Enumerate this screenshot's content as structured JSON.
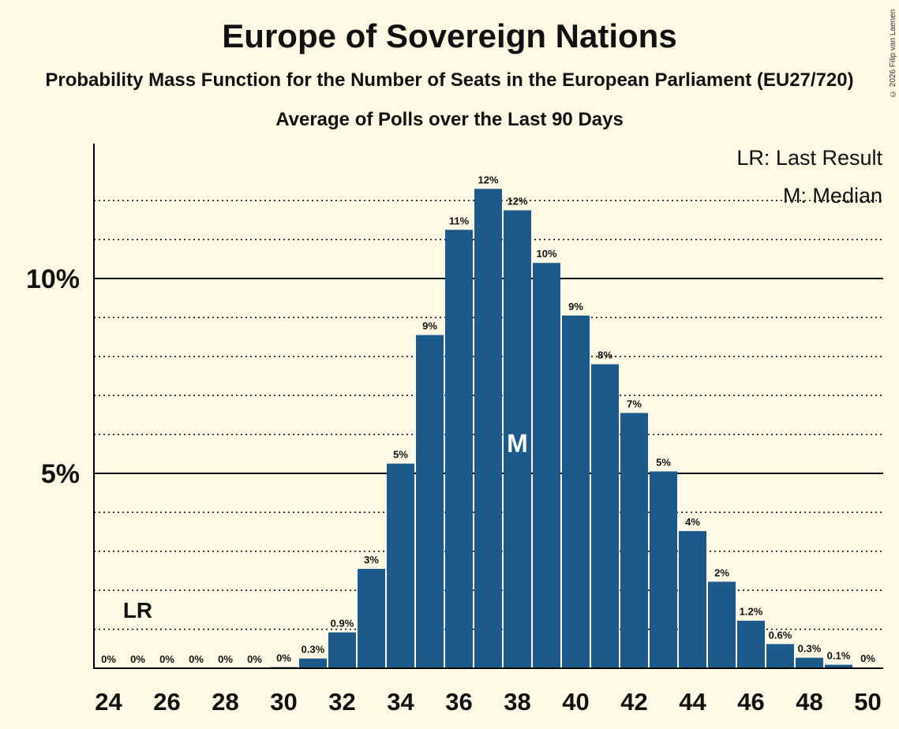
{
  "title": "Europe of Sovereign Nations",
  "subtitle": "Probability Mass Function for the Number of Seats in the European Parliament (EU27/720)",
  "caption": "Average of Polls over the Last 90 Days",
  "copyright": "© 2026 Filip van Laenen",
  "legend": {
    "last_result": "LR: Last Result",
    "median": "M: Median"
  },
  "colors": {
    "background": "#FFF9E5",
    "bar": "#1C5A8C",
    "text": "#111111"
  },
  "chart_data": {
    "type": "bar",
    "title": "Europe of Sovereign Nations",
    "xlabel": "",
    "ylabel": "",
    "ylim": [
      0,
      13.5
    ],
    "x_ticks": [
      "24",
      "26",
      "28",
      "30",
      "32",
      "34",
      "36",
      "38",
      "40",
      "42",
      "44",
      "46",
      "48",
      "50"
    ],
    "y_ticks": [
      {
        "value": 5,
        "label": "5%"
      },
      {
        "value": 10,
        "label": "10%"
      }
    ],
    "categories": [
      24,
      25,
      26,
      27,
      28,
      29,
      30,
      31,
      32,
      33,
      34,
      35,
      36,
      37,
      38,
      39,
      40,
      41,
      42,
      43,
      44,
      45,
      46,
      47,
      48,
      49,
      50
    ],
    "values": [
      0,
      0,
      0,
      0,
      0,
      0,
      0.03,
      0.25,
      0.92,
      2.55,
      5.25,
      8.55,
      11.25,
      12.3,
      11.75,
      10.4,
      9.05,
      7.8,
      6.55,
      5.05,
      3.52,
      2.22,
      1.22,
      0.62,
      0.27,
      0.09,
      0.02
    ],
    "labels": [
      "0%",
      "0%",
      "0%",
      "0%",
      "0%",
      "0%",
      "0%",
      "0.3%",
      "0.9%",
      "3%",
      "5%",
      "9%",
      "11%",
      "12%",
      "12%",
      "10%",
      "9%",
      "8%",
      "7%",
      "5%",
      "4%",
      "2%",
      "1.2%",
      "0.6%",
      "0.3%",
      "0.1%",
      "0%"
    ],
    "last_result_seat": 25,
    "last_result_label": "LR",
    "median_seat": 38,
    "median_label": "M"
  }
}
